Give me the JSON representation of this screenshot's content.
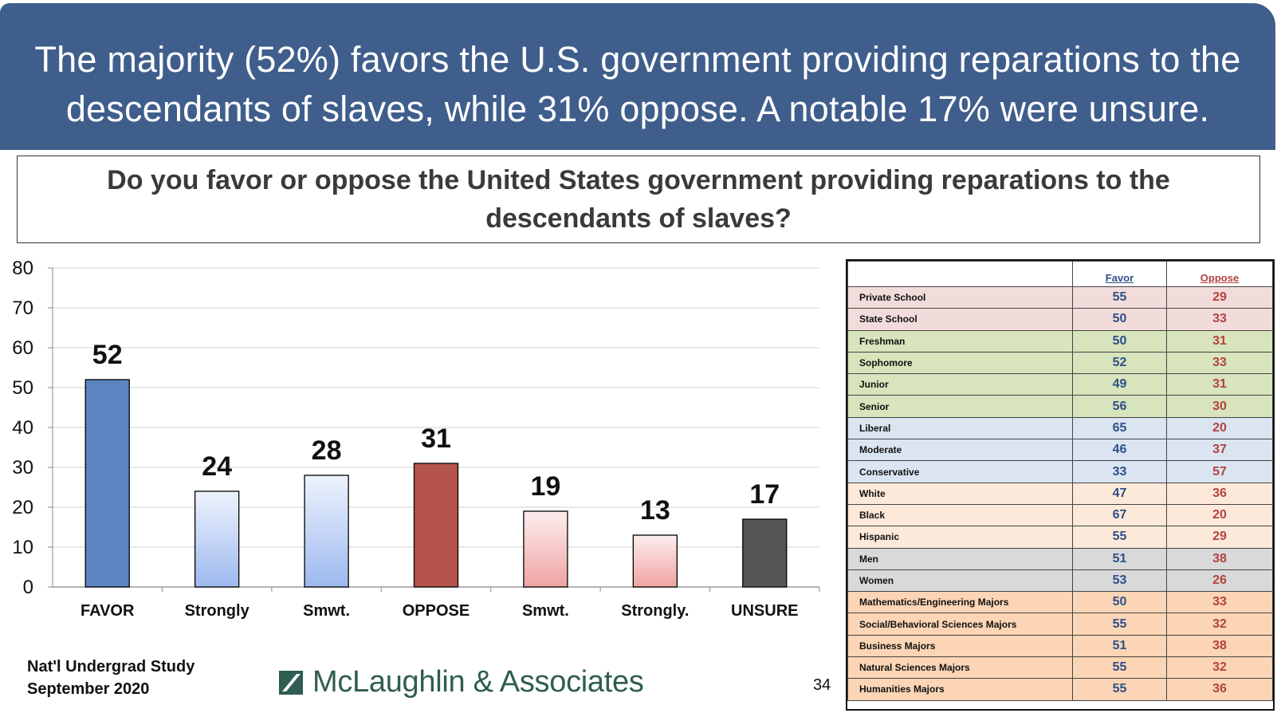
{
  "banner": {
    "line1": "The majority (52%) favors the U.S. government providing reparations to the",
    "line2": "descendants of slaves, while 31% oppose. A notable 17% were unsure."
  },
  "question": {
    "line1": "Do you favor or oppose the United States government providing reparations to the",
    "line2": "descendants of slaves?"
  },
  "chart_data": {
    "type": "bar",
    "title": "Do you favor or oppose the United States government providing reparations to the descendants of slaves?",
    "categories": [
      "FAVOR",
      "Strongly",
      "Smwt.",
      "OPPOSE",
      "Smwt.",
      "Strongly.",
      "UNSURE"
    ],
    "values": [
      52,
      24,
      28,
      31,
      19,
      13,
      17
    ],
    "bar_styles": [
      "favor",
      "favor-light",
      "favor-light",
      "oppose",
      "oppose-light",
      "oppose-light",
      "unsure"
    ],
    "ylim": [
      0,
      80
    ],
    "yticks": [
      0,
      10,
      20,
      30,
      40,
      50,
      60,
      70,
      80
    ],
    "grid": true,
    "xlabel": "",
    "ylabel": ""
  },
  "colors": {
    "banner": "#3f5e8c",
    "favor": "#5b84c1",
    "oppose": "#b4544d",
    "unsure": "#555555",
    "favor_text": "#2f4f8a",
    "oppose_text": "#b2433f"
  },
  "footer": {
    "study_line1": "Nat'l Undergrad Study",
    "study_line2": "September 2020",
    "logo_text": "McLaughlin & Associates",
    "logo_icon": "mclaughlin-logo-icon",
    "page_number": "34"
  },
  "demographics": {
    "headers": {
      "label": "",
      "favor": "Favor",
      "oppose": "Oppose"
    },
    "rows": [
      {
        "label": "Private School",
        "favor": 55,
        "oppose": 29,
        "group": "school"
      },
      {
        "label": "State School",
        "favor": 50,
        "oppose": 33,
        "group": "school"
      },
      {
        "label": "Freshman",
        "favor": 50,
        "oppose": 31,
        "group": "year"
      },
      {
        "label": "Sophomore",
        "favor": 52,
        "oppose": 33,
        "group": "year"
      },
      {
        "label": "Junior",
        "favor": 49,
        "oppose": 31,
        "group": "year"
      },
      {
        "label": "Senior",
        "favor": 56,
        "oppose": 30,
        "group": "year"
      },
      {
        "label": "Liberal",
        "favor": 65,
        "oppose": 20,
        "group": "ideology"
      },
      {
        "label": "Moderate",
        "favor": 46,
        "oppose": 37,
        "group": "ideology"
      },
      {
        "label": "Conservative",
        "favor": 33,
        "oppose": 57,
        "group": "ideology"
      },
      {
        "label": "White",
        "favor": 47,
        "oppose": 36,
        "group": "race"
      },
      {
        "label": "Black",
        "favor": 67,
        "oppose": 20,
        "group": "race"
      },
      {
        "label": "Hispanic",
        "favor": 55,
        "oppose": 29,
        "group": "race"
      },
      {
        "label": "Men",
        "favor": 51,
        "oppose": 38,
        "group": "gender"
      },
      {
        "label": "Women",
        "favor": 53,
        "oppose": 26,
        "group": "gender"
      },
      {
        "label": "Mathematics/Engineering Majors",
        "favor": 50,
        "oppose": 33,
        "group": "major"
      },
      {
        "label": "Social/Behavioral Sciences Majors",
        "favor": 55,
        "oppose": 32,
        "group": "major"
      },
      {
        "label": "Business Majors",
        "favor": 51,
        "oppose": 38,
        "group": "major"
      },
      {
        "label": "Natural Sciences Majors",
        "favor": 55,
        "oppose": 32,
        "group": "major"
      },
      {
        "label": "Humanities Majors",
        "favor": 55,
        "oppose": 36,
        "group": "major"
      }
    ],
    "group_colors": {
      "school": "#f2dcdb",
      "year": "#d7e4bc",
      "ideology": "#dbe5f1",
      "race": "#fde9d9",
      "gender": "#d9d9d9",
      "major": "#fbd5b5"
    }
  }
}
